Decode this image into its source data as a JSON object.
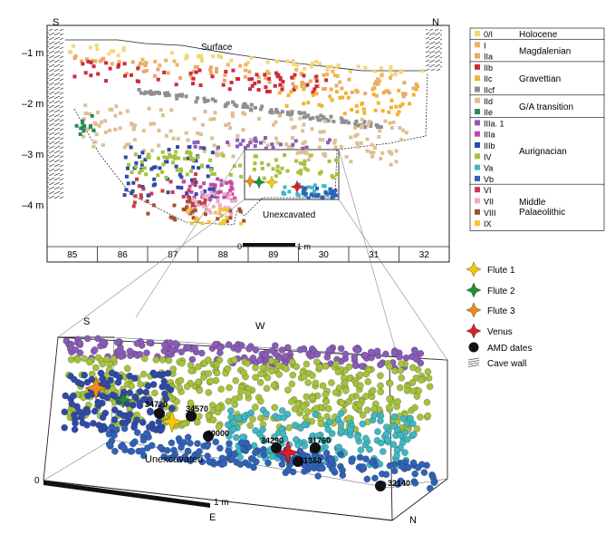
{
  "profile": {
    "compass_left": "S",
    "compass_right": "N",
    "depth_labels": [
      "–1 m",
      "–2 m",
      "–3 m",
      "–4 m"
    ],
    "surface_label": "Surface",
    "unexcavated_label": "Unexcavated",
    "scale_zero": "0",
    "scale_label": "1 m",
    "grid_squares": [
      "85",
      "86",
      "87",
      "88",
      "89",
      "30",
      "31",
      "32"
    ]
  },
  "legend": {
    "layers": [
      {
        "code": "0/I",
        "color": "#f2d77a",
        "group": "Holocene"
      },
      {
        "code": "I",
        "color": "#f0b35f",
        "group": "Magdalenian"
      },
      {
        "code": "IIa",
        "color": "#e8a96a",
        "group": ""
      },
      {
        "code": "IIb",
        "color": "#cf2a3a",
        "group": "Gravettian"
      },
      {
        "code": "IIc",
        "color": "#f2b233",
        "group": ""
      },
      {
        "code": "IIcf",
        "color": "#8f8f8f",
        "group": ""
      },
      {
        "code": "IId",
        "color": "#ddbf94",
        "group": "G/A transition"
      },
      {
        "code": "IIe",
        "color": "#2a8a5a",
        "group": ""
      },
      {
        "code": "IIIa. 1",
        "color": "#8a5cb8",
        "group": "Aurignacian"
      },
      {
        "code": "IIIa",
        "color": "#c24aa8",
        "group": ""
      },
      {
        "code": "IIIb",
        "color": "#2e4aa8",
        "group": ""
      },
      {
        "code": "IV",
        "color": "#a6c23c",
        "group": ""
      },
      {
        "code": "Va",
        "color": "#3fb8c2",
        "group": ""
      },
      {
        "code": "Vb",
        "color": "#2f62b8",
        "group": ""
      },
      {
        "code": "VI",
        "color": "#c83c4a",
        "group": "Middle"
      },
      {
        "code": "VII",
        "color": "#f2a8c8",
        "group": "Palaeolithic"
      },
      {
        "code": "VIII",
        "color": "#a0522d",
        "group": ""
      },
      {
        "code": "IX",
        "color": "#f2c43a",
        "group": ""
      }
    ],
    "symbols": [
      {
        "label": "Flute 1",
        "color": "#f7c800"
      },
      {
        "label": "Flute 2",
        "color": "#1f8f3a"
      },
      {
        "label": "Flute 3",
        "color": "#f08a1c"
      },
      {
        "label": "Venus",
        "color": "#d81f26"
      },
      {
        "label": "AMD dates",
        "color": "#111111"
      },
      {
        "label": "Cave wall",
        "color": "#555555"
      }
    ]
  },
  "block": {
    "corner_s": "S",
    "corner_w": "W",
    "corner_e": "E",
    "corner_n": "N",
    "origin": "0",
    "scale_label": "1 m",
    "unexcavated_label": "Unexcavated",
    "dates": [
      "34720",
      "34570",
      "40000",
      "34290",
      "31760",
      "31380",
      "32140"
    ]
  }
}
